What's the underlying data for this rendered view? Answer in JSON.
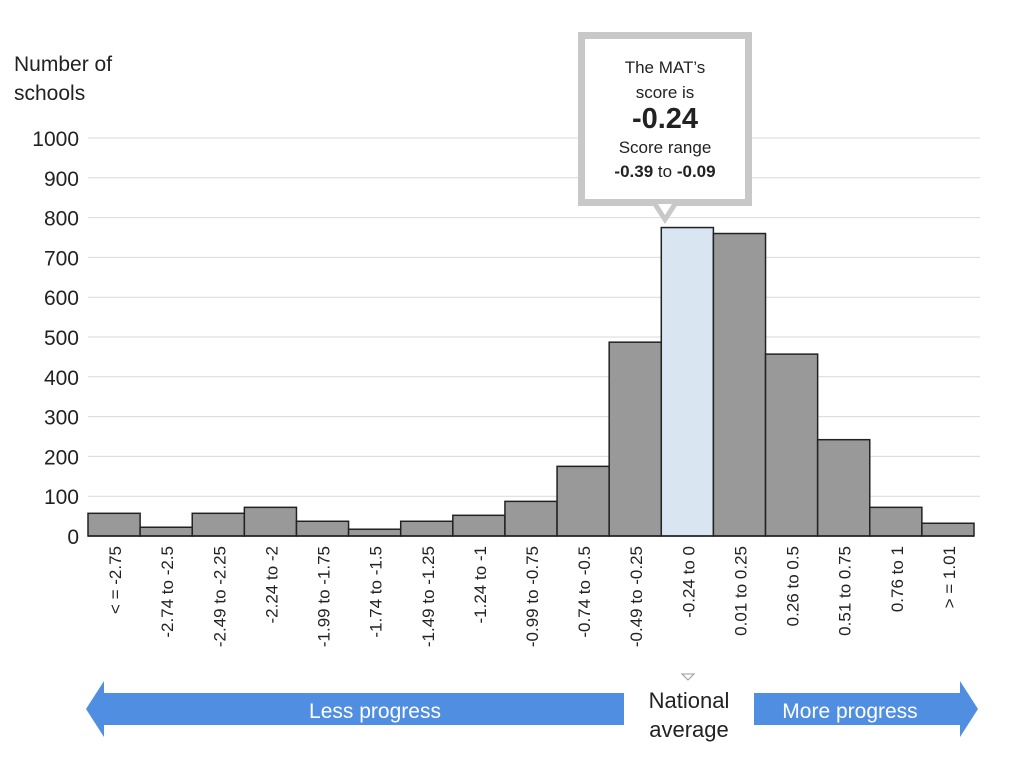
{
  "chart_data": {
    "type": "bar",
    "ylabel": "Number of schools",
    "ylim": [
      0,
      1000
    ],
    "yticks": [
      "0",
      "100",
      "200",
      "300",
      "400",
      "500",
      "600",
      "700",
      "800",
      "900",
      "1000"
    ],
    "categories": [
      "< = -2.75",
      "-2.74 to -2.5",
      "-2.49 to -2.25",
      "-2.24 to -2",
      "-1.99 to -1.75",
      "-1.74 to -1.5",
      "-1.49 to -1.25",
      "-1.24 to -1",
      "-0.99 to -0.75",
      "-0.74 to -0.5",
      "-0.49 to -0.25",
      "-0.24 to 0",
      "0.01 to 0.25",
      "0.26 to 0.5",
      "0.51 to 0.75",
      "0.76 to 1",
      "> = 1.01"
    ],
    "values": [
      57,
      22,
      57,
      72,
      37,
      17,
      37,
      52,
      87,
      175,
      487,
      775,
      760,
      457,
      242,
      72,
      32
    ],
    "highlight_index": 11,
    "grid": true,
    "colors": {
      "bar": "#999999",
      "highlight": "#d9e6f2",
      "grid": "#d9d9d9",
      "arrow": "#4f8ee0"
    }
  },
  "callout": {
    "line1": "The MAT’s",
    "line2": "score is",
    "score": "-0.24",
    "range_label": "Score range",
    "range_low": "-0.39",
    "range_to": "to",
    "range_high": "-0.09"
  },
  "legend": {
    "less": "Less progress",
    "national_line1": "National",
    "national_line2": "average",
    "more": "More progress"
  }
}
